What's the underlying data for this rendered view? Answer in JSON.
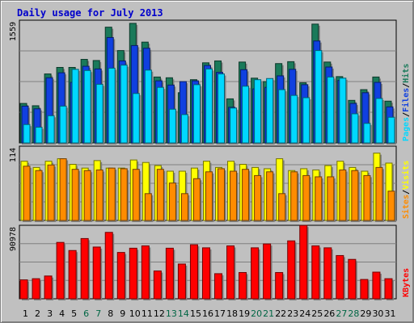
{
  "chart_data": {
    "type": "bar",
    "title": "Daily usage for July 2013",
    "categories": [
      "1",
      "2",
      "3",
      "4",
      "5",
      "6",
      "7",
      "8",
      "9",
      "10",
      "11",
      "12",
      "13",
      "14",
      "15",
      "16",
      "17",
      "18",
      "19",
      "20",
      "21",
      "22",
      "23",
      "24",
      "25",
      "26",
      "27",
      "28",
      "29",
      "30",
      "31"
    ],
    "weekend_days": [
      "6",
      "7",
      "13",
      "14",
      "20",
      "21",
      "27",
      "28"
    ],
    "panels": [
      {
        "id": "hits_panel",
        "ymax": 1559,
        "ymax_label": "1559",
        "series": [
          {
            "name": "Hits",
            "color": "#1a7a5a",
            "values": [
              515,
              485,
              900,
              985,
              985,
              1090,
              1075,
              1510,
              1205,
              1560,
              1315,
              860,
              850,
              655,
              825,
              1045,
              1070,
              575,
              1055,
              845,
              800,
              1035,
              1060,
              785,
              1550,
              1055,
              865,
              555,
              695,
              860,
              545
            ]
          },
          {
            "name": "Files",
            "color": "#1040e0",
            "values": [
              480,
              445,
              850,
              915,
              790,
              1000,
              965,
              1375,
              1070,
              1270,
              1235,
              810,
              755,
              800,
              810,
              1010,
              920,
              465,
              955,
              705,
              725,
              875,
              960,
              760,
              1330,
              990,
              815,
              515,
              655,
              790,
              470
            ]
          },
          {
            "name": "Pages",
            "color": "#00d8ff",
            "values": [
              240,
              205,
              355,
              480,
              960,
              945,
              765,
              975,
              1015,
              645,
              950,
              725,
              440,
              370,
              760,
              965,
              900,
              455,
              740,
              825,
              840,
              695,
              620,
              590,
              1205,
              860,
              845,
              380,
              255,
              580,
              335
            ]
          }
        ],
        "legend": [
          "Pages",
          "/",
          "Files",
          "/",
          "Hits"
        ]
      },
      {
        "id": "visits_panel",
        "ymax": 114,
        "ymax_label": "114",
        "series": [
          {
            "name": "Visits",
            "color": "#ffff00",
            "values": [
              95,
              85,
              95,
              99,
              90,
              84,
              96,
              84,
              84,
              97,
              93,
              88,
              79,
              79,
              84,
              95,
              85,
              95,
              90,
              85,
              83,
              99,
              80,
              83,
              81,
              88,
              95,
              85,
              79,
              108,
              92
            ]
          },
          {
            "name": "Sites",
            "color": "#ff8c00",
            "values": [
              87,
              80,
              89,
              99,
              82,
              80,
              81,
              84,
              83,
              82,
              43,
              82,
              60,
              43,
              67,
              78,
              83,
              79,
              82,
              72,
              78,
              43,
              78,
              72,
              70,
              70,
              81,
              80,
              72,
              85,
              47
            ]
          }
        ],
        "legend": [
          "Sites",
          "/",
          "Visits"
        ]
      },
      {
        "id": "kbytes_panel",
        "ymax": 90978,
        "ymax_label": "90978",
        "series": [
          {
            "name": "KBytes",
            "color": "#ff0000",
            "values": [
              24500,
              26000,
              29500,
              73000,
              62500,
              78000,
              67000,
              86000,
              60000,
              65500,
              68500,
              36000,
              65500,
              45000,
              70000,
              66000,
              32500,
              68500,
              34000,
              66000,
              71000,
              34000,
              75000,
              95000,
              68500,
              66000,
              56000,
              51000,
              25000,
              34500,
              26000
            ]
          }
        ],
        "legend": [
          "KBytes"
        ]
      }
    ]
  },
  "colors": {
    "background": "#c0c0c0",
    "plot_bg": "#c0c0c0",
    "grid": "#7f7f7f",
    "title": "#0000cc",
    "weekday_label": "#000000",
    "weekend_label": "#006644",
    "separator": "#7f7f7f"
  }
}
